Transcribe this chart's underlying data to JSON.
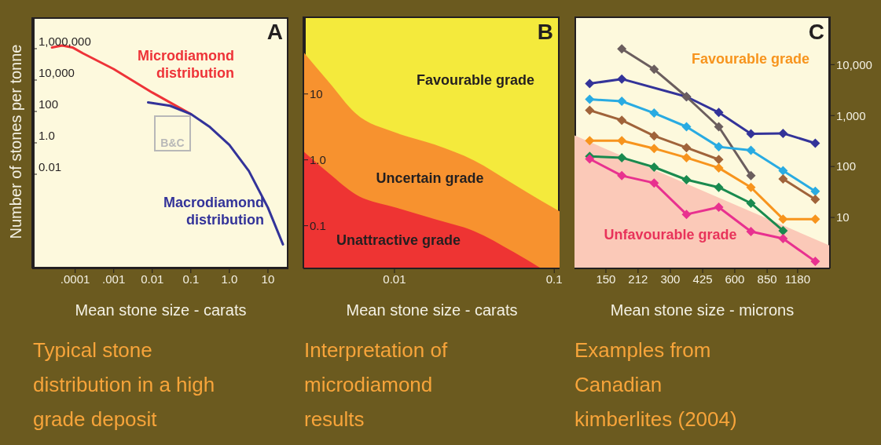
{
  "chart_data": [
    {
      "type": "line",
      "title": "Typical stone distribution in a high grade deposit",
      "xlabel": "Mean stone size - carats",
      "ylabel": "Number of stones per tonne",
      "log": "xy",
      "xlim": [
        7.7e-06,
        34
      ],
      "ylim": [
        1e-08,
        100000000
      ],
      "xticks": [
        {
          "value": 0.0001,
          "label": ".0001"
        },
        {
          "value": 0.001,
          "label": ".001"
        },
        {
          "value": 0.01,
          "label": "0.01"
        },
        {
          "value": 0.1,
          "label": "0.1"
        },
        {
          "value": 1,
          "label": "1.0"
        },
        10
      ],
      "yticks": [
        {
          "value": 1000000,
          "label": "1,000,000"
        },
        {
          "value": 10000,
          "label": "10,000"
        },
        100,
        {
          "value": 1,
          "label": "1.0"
        },
        0.01
      ],
      "series": [
        {
          "name": "Microdiamond distribution",
          "color": "#ee3338",
          "x": [
            2.5e-05,
            4.6e-05,
            8.5e-05,
            0.00016,
            0.001,
            0.01,
            0.1
          ],
          "values": [
            1200000,
            1600000,
            1200000,
            500000,
            50000,
            1600,
            68
          ]
        },
        {
          "name": "Macrodiamond distribution",
          "color": "#333399",
          "x": [
            0.0078,
            0.029,
            0.1,
            0.3,
            1,
            3.2,
            10,
            24.5
          ],
          "values": [
            380,
            230,
            68,
            11,
            0.74,
            0.016,
            7.4e-05,
            3.4e-07
          ]
        }
      ],
      "annotations": [
        "A",
        "B&C"
      ]
    },
    {
      "type": "area",
      "title": "Interpretation of microdiamond results",
      "xlabel": "Mean stone size - carats",
      "log": "xy",
      "xlim": [
        0.00269,
        0.108
      ],
      "ylim": [
        0.0225,
        150
      ],
      "xticks": [
        0.01,
        0.1
      ],
      "yticks": [
        10,
        {
          "value": 1,
          "label": "1.0"
        },
        0.1
      ],
      "x": [
        0.00269,
        0.0039,
        0.0057,
        0.0101,
        0.0179,
        0.0315,
        0.0556,
        0.0828,
        0.108
      ],
      "series": [
        {
          "name": "Uncertain grade",
          "color": "#f7922f",
          "values": [
            43.5,
            15,
            5.1,
            2.6,
            1.7,
            0.98,
            0.43,
            0.24,
            0.165
          ]
        },
        {
          "name": "Unattractive grade",
          "color": "#ee3433",
          "values": [
            1.35,
            0.62,
            0.3,
            0.19,
            0.126,
            0.083,
            0.04,
            0.0225,
            null
          ]
        }
      ],
      "annotations": [
        "B",
        "Favourable grade"
      ]
    },
    {
      "type": "line",
      "title": "Examples from Canadian kimberlites (2004)",
      "xlabel": "Mean stone size - microns",
      "log": "xy",
      "xlim": [
        107,
        1670
      ],
      "ylim": [
        1,
        88000
      ],
      "xticks": [
        150,
        212,
        300,
        425,
        600,
        850,
        1180
      ],
      "yticks": [
        {
          "value": 10000,
          "label": "10,000"
        },
        {
          "value": 1000,
          "label": "1,000"
        },
        100,
        10
      ],
      "series": [
        {
          "name": "Unfavourable grade",
          "type": "area",
          "color": "#fbc9b8",
          "x": [
            107,
            1670
          ],
          "values": [
            407,
            2.8
          ]
        },
        {
          "color": "#333399",
          "marker": "diamond",
          "x": [
            126,
            178,
            357,
            505,
            714,
            1009,
            1427
          ],
          "values": [
            4230,
            5220,
            2340,
            1150,
            438,
            448,
            286
          ]
        },
        {
          "color": "#6b5e5e",
          "marker": "diamond",
          "x": [
            178,
            252,
            357,
            505,
            714
          ],
          "values": [
            20300,
            8090,
            2340,
            603,
            66
          ]
        },
        {
          "color": "#29abe2",
          "marker": "diamond",
          "x": [
            126,
            178,
            252,
            357,
            505,
            714,
            1009,
            1427
          ],
          "values": [
            2080,
            1910,
            1120,
            603,
            243,
            208,
            83,
            32.6
          ]
        },
        {
          "color": "#a0633a",
          "marker": "diamond",
          "x": [
            126,
            178,
            252,
            357,
            505,
            714,
            1009,
            1427
          ],
          "values": [
            1270,
            810,
            398,
            234,
            137,
            null,
            56.8,
            22.6
          ]
        },
        {
          "color": "#f7941d",
          "marker": "diamond",
          "x": [
            126,
            178,
            252,
            357,
            505,
            714,
            1009,
            1427
          ],
          "values": [
            322,
            322,
            226,
            149,
            94,
            39,
            9.3,
            9.3
          ]
        },
        {
          "color": "#1a8a4f",
          "marker": "diamond",
          "x": [
            126,
            178,
            252,
            357,
            505,
            714,
            1009
          ],
          "values": [
            158,
            149,
            97,
            55,
            39,
            19,
            5.5
          ]
        },
        {
          "color": "#e8318f",
          "marker": "diamond",
          "x": [
            126,
            178,
            252,
            357,
            505,
            714,
            1009,
            1427
          ],
          "values": [
            141,
            66,
            47.5,
            11.5,
            15.9,
            5.3,
            3.85,
            1.37
          ]
        }
      ],
      "annotations": [
        "C",
        "Favourable grade"
      ]
    }
  ]
}
